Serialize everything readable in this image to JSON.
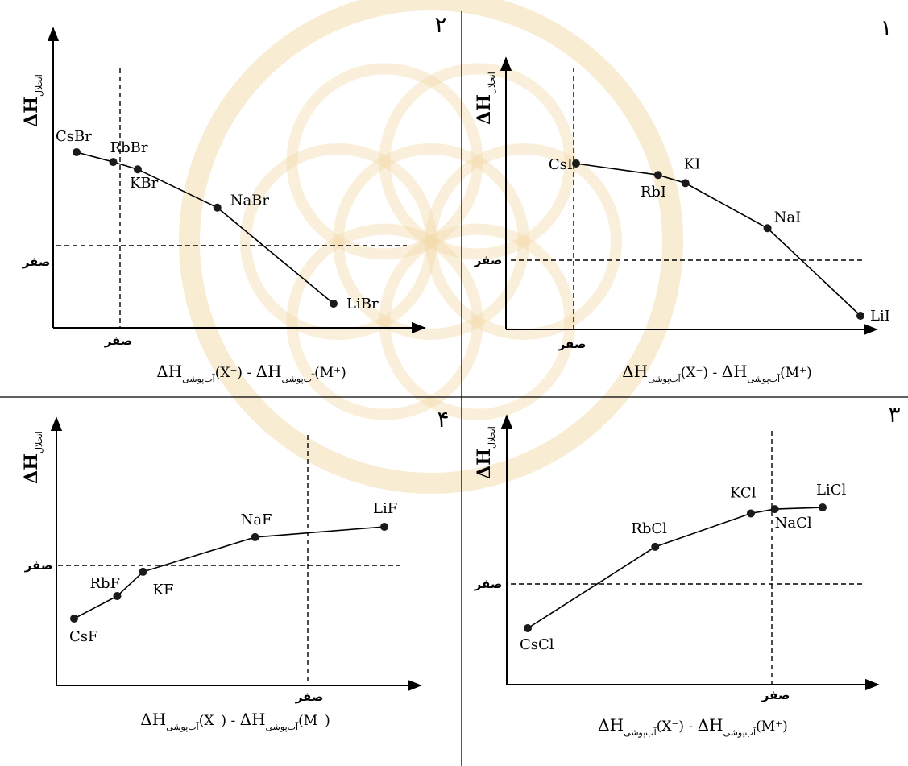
{
  "page": {
    "background": "#ffffff",
    "watermark_color": "#f3dcae"
  },
  "axis_zero_label": "صفر",
  "y_axis_symbol": "ΔH",
  "y_axis_subscript": "انحلال",
  "x_axis_label": {
    "delta": "ΔH",
    "subscript": "آب‌پوشی",
    "anion": "(X⁻)",
    "minus": "-",
    "cation": "(M⁺)"
  },
  "chart_data": [
    {
      "type": "line",
      "panel_number": "۱",
      "series": [
        {
          "values": [
            {
              "label": "CsI",
              "x": -1,
              "y": 1.17
            },
            {
              "label": "RbI",
              "x": 0.5,
              "y": 1.03
            },
            {
              "label": "KI",
              "x": 1.0,
              "y": 0.93
            },
            {
              "label": "NaI",
              "x": 2.5,
              "y": 0.38
            },
            {
              "label": "LiI",
              "x": 4.2,
              "y": -0.69
            }
          ]
        }
      ],
      "zero_lines": {
        "horizontal": true,
        "vertical": true
      }
    },
    {
      "type": "line",
      "panel_number": "۲",
      "series": [
        {
          "values": [
            {
              "label": "CsBr",
              "x": -0.7,
              "y": 1.15
            },
            {
              "label": "RbBr",
              "x": -0.1,
              "y": 1.03
            },
            {
              "label": "KBr",
              "x": 0.3,
              "y": 0.94
            },
            {
              "label": "NaBr",
              "x": 1.6,
              "y": 0.47
            },
            {
              "label": "LiBr",
              "x": 3.5,
              "y": -0.71
            }
          ]
        }
      ],
      "zero_lines": {
        "horizontal": true,
        "vertical": true
      }
    },
    {
      "type": "line",
      "panel_number": "۳",
      "series": [
        {
          "values": [
            {
              "label": "CsCl",
              "x": -3.0,
              "y": -0.52
            },
            {
              "label": "RbCl",
              "x": -1.4,
              "y": 0.43
            },
            {
              "label": "KCl",
              "x": -0.2,
              "y": 0.82
            },
            {
              "label": "NaCl",
              "x": 0.1,
              "y": 0.87
            },
            {
              "label": "LiCl",
              "x": 0.7,
              "y": 0.89
            }
          ]
        }
      ],
      "zero_lines": {
        "horizontal": true,
        "vertical": true
      }
    },
    {
      "type": "line",
      "panel_number": "۴",
      "series": [
        {
          "values": [
            {
              "label": "CsF",
              "x": -2.7,
              "y": -0.62
            },
            {
              "label": "RbF",
              "x": -2.2,
              "y": -0.36
            },
            {
              "label": "KF",
              "x": -1.9,
              "y": -0.08
            },
            {
              "label": "NaF",
              "x": -0.6,
              "y": 0.32
            },
            {
              "label": "LiF",
              "x": 0.9,
              "y": 0.44
            }
          ]
        }
      ],
      "zero_lines": {
        "horizontal": true,
        "vertical": true
      }
    }
  ]
}
